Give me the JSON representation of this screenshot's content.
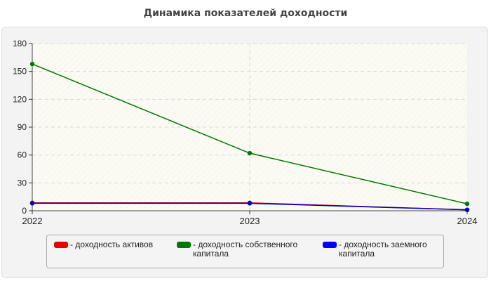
{
  "title": "Динамика показателей доходности",
  "chart_data": {
    "type": "line",
    "title": "Динамика показателей доходности",
    "x": [
      "2022",
      "2023",
      "2024"
    ],
    "ylim": [
      0,
      180
    ],
    "yticks": [
      "0",
      "30",
      "60",
      "90",
      "120",
      "150",
      "180"
    ],
    "grid": true,
    "legend_position": "bottom",
    "series": [
      {
        "name": "- доходность активов",
        "values": [
          8.5,
          8.5,
          1
        ],
        "color": "#cc0000"
      },
      {
        "name": "- доходность собственного капитала",
        "values": [
          158,
          62,
          7.5
        ],
        "color": "#007700"
      },
      {
        "name": "- доходность заемного капитала",
        "values": [
          8,
          8,
          1
        ],
        "color": "#0000cc"
      }
    ]
  }
}
